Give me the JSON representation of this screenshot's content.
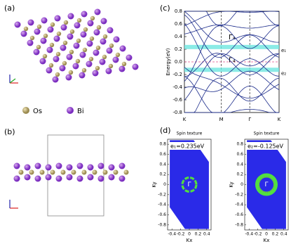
{
  "panels": {
    "a": "(a)",
    "b": "(b)",
    "c": "(c)",
    "d": "(d)"
  },
  "legend": [
    "Os",
    "Bi"
  ],
  "bands": {
    "ylabel": "Energy(eV)",
    "ylim": [
      -0.8,
      0.8
    ],
    "yticks": [
      0.8,
      0.6,
      0.4,
      0.2,
      0.0,
      -0.2,
      -0.4,
      -0.6,
      -0.8
    ],
    "kpoints": [
      "K",
      "M",
      "Γ",
      "K"
    ],
    "levels": [
      {
        "name": "e₁",
        "energy": 0.235,
        "state": "Γ₄"
      },
      {
        "name": "e₂",
        "energy": -0.125,
        "state": "Γ₄"
      }
    ]
  },
  "spin": [
    {
      "title": "Spin texture",
      "annotation": "e₁=0.235eV",
      "center": "Γ",
      "xlabel": "Kx",
      "ylabel": "Ky",
      "xlim": [
        -0.5,
        0.5
      ],
      "ylim": [
        -0.9,
        0.9
      ],
      "xticks": [
        -0.4,
        -0.2,
        0,
        0.2,
        0.4
      ],
      "yticks": [
        0.8,
        0.6,
        0.4,
        0.2,
        0,
        -0.2,
        -0.4,
        -0.6,
        -0.8
      ]
    },
    {
      "title": "Spin texture",
      "annotation": "e₂=-0.125eV",
      "center": "Γ",
      "xlabel": "Kx",
      "ylabel": "Ky",
      "xlim": [
        -0.5,
        0.5
      ],
      "ylim": [
        -0.9,
        0.9
      ],
      "xticks": [
        -0.4,
        -0.2,
        0,
        0.2,
        0.4
      ],
      "yticks": [
        0.8,
        0.6,
        0.4,
        0.2,
        0,
        -0.2,
        -0.4,
        -0.6,
        -0.8
      ]
    }
  ]
}
